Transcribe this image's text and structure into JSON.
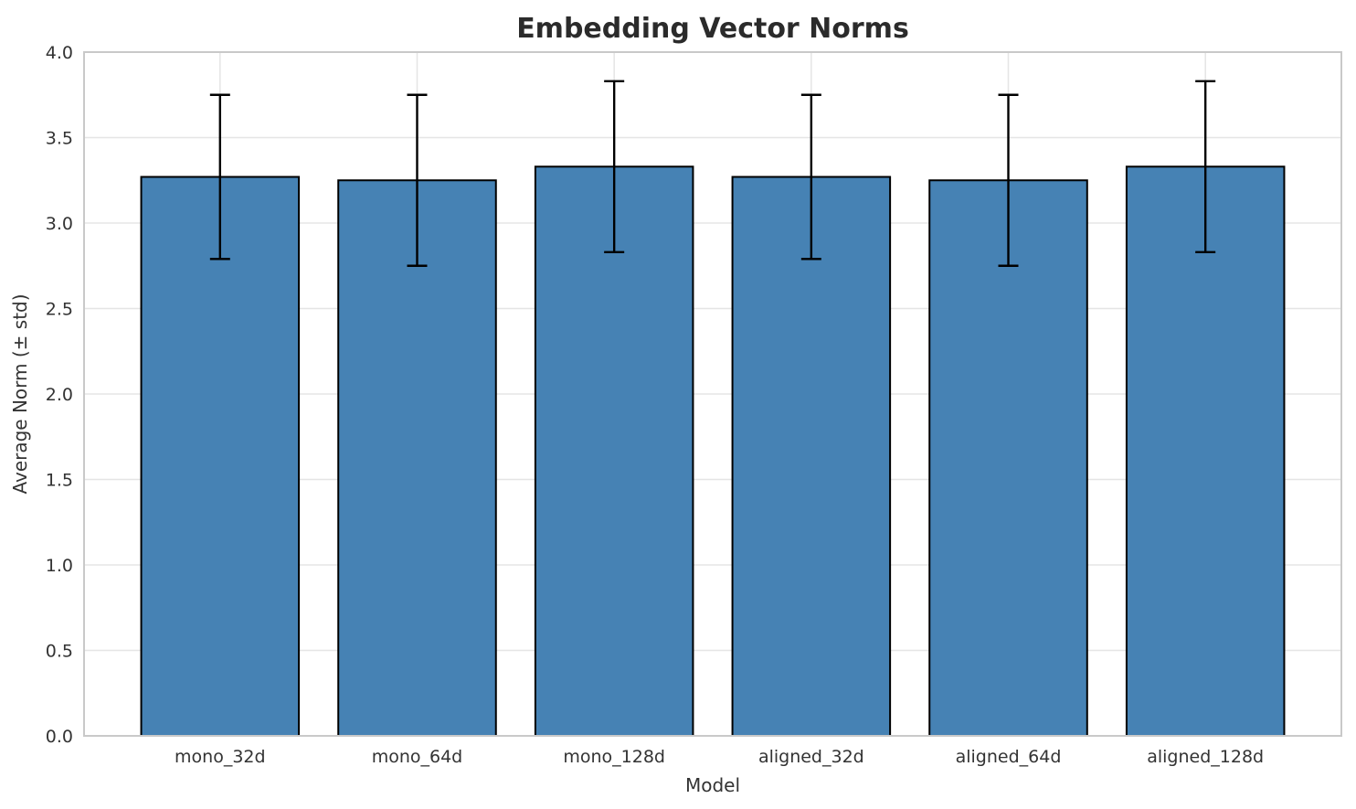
{
  "chart_data": {
    "type": "bar",
    "title": "Embedding Vector Norms",
    "xlabel": "Model",
    "ylabel": "Average Norm (± std)",
    "categories": [
      "mono_32d",
      "mono_64d",
      "mono_128d",
      "aligned_32d",
      "aligned_64d",
      "aligned_128d"
    ],
    "values": [
      3.27,
      3.25,
      3.33,
      3.27,
      3.25,
      3.33
    ],
    "errors": [
      0.48,
      0.5,
      0.5,
      0.48,
      0.5,
      0.5
    ],
    "ylim": [
      0.0,
      4.0
    ],
    "yticks": [
      0.0,
      0.5,
      1.0,
      1.5,
      2.0,
      2.5,
      3.0,
      3.5,
      4.0
    ],
    "ytick_labels": [
      "0.0",
      "0.5",
      "1.0",
      "1.5",
      "2.0",
      "2.5",
      "3.0",
      "3.5",
      "4.0"
    ],
    "grid": true,
    "legend": null,
    "colors": {
      "bar_fill": "#4682B4",
      "bar_edge": "#000000",
      "error_bar": "#000000",
      "grid_line": "#e5e5e5",
      "spine": "#c9c9c9",
      "tick_text": "#333333",
      "axis_label_text": "#333333",
      "title_text": "#2b2b2b",
      "background": "#ffffff"
    }
  }
}
